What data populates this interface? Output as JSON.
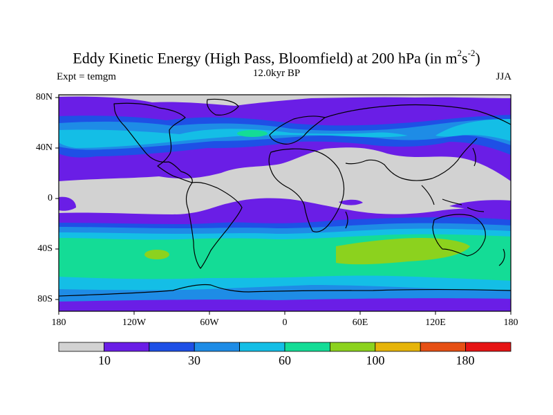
{
  "title": {
    "main": "Eddy Kinetic Energy (High Pass, Bloomfield) at 200 hPa (in m",
    "sup1": "2",
    "mid": "s",
    "sup2": "-2",
    "close": ")"
  },
  "subtitle": "12.0kyr BP",
  "left_label": "Expt = temgm",
  "right_label": "JJA",
  "lat_labels": [
    "80N",
    "40N",
    "0",
    "40S",
    "80S"
  ],
  "lon_labels": [
    "180",
    "120W",
    "60W",
    "0",
    "60E",
    "120E",
    "180"
  ],
  "colorbar": {
    "colors": [
      "#d2d2d2",
      "#6a1ee6",
      "#1e50e6",
      "#1e8ce6",
      "#14bee6",
      "#14dc96",
      "#8cd21e",
      "#e6b40a",
      "#e65014",
      "#e61414"
    ],
    "labels": [
      "10",
      "30",
      "60",
      "100",
      "180"
    ]
  },
  "chart_data": {
    "type": "filled-contour-map",
    "variable": "Eddy Kinetic Energy (High Pass, Bloomfield)",
    "level": "200 hPa",
    "units": "m^2 s^-2",
    "experiment": "temgm",
    "period": "12.0kyr BP",
    "season": "JJA",
    "lon_ticks": [
      "180",
      "120W",
      "60W",
      "0",
      "60E",
      "120E",
      "180"
    ],
    "lat_ticks": [
      "80N",
      "40N",
      "0",
      "40S",
      "80S"
    ],
    "colorbar_labels": [
      10,
      30,
      60,
      100,
      180
    ],
    "zones": [
      {
        "region": "tropics / NH subtropics (Africa-Asia)",
        "level": 0
      },
      {
        "region": "NH midlatitudes",
        "level": 1
      },
      {
        "region": "NH storm tracks (N Pacific, N Atlantic)",
        "level": 3
      },
      {
        "region": "SH subtropics",
        "level": 1
      },
      {
        "region": "SH midlatitude belt",
        "level": 5
      },
      {
        "region": "SH maxima (S Indian Ocean, SE Pacific)",
        "level": 6
      },
      {
        "region": "Antarctic margin",
        "level": 3
      }
    ]
  }
}
